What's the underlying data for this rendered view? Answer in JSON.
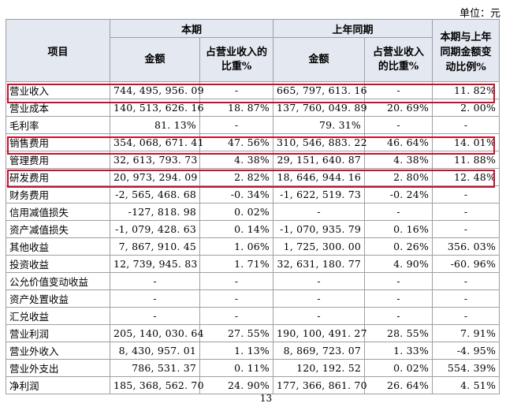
{
  "unit_label": "单位：元",
  "headers": {
    "item": "项目",
    "current_period": "本期",
    "prior_period": "上年同期",
    "change": "本期与上年同期金额变动比例%",
    "amount": "金额",
    "ratio": "占营业收入的比重%"
  },
  "rows": [
    {
      "item": "营业收入",
      "cur_amt": "744, 495, 956. 09",
      "cur_ratio": "-",
      "prior_amt": "665, 797, 613. 16",
      "prior_ratio": "-",
      "change": "11. 82%"
    },
    {
      "item": "营业成本",
      "cur_amt": "140, 513, 626. 16",
      "cur_ratio": "18. 87%",
      "prior_amt": "137, 760, 049. 89",
      "prior_ratio": "20. 69%",
      "change": "2. 00%"
    },
    {
      "item": "毛利率",
      "cur_amt": "81. 13%",
      "cur_ratio": "-",
      "prior_amt": "79. 31%",
      "prior_ratio": "-",
      "change": "-"
    },
    {
      "item": "销售费用",
      "cur_amt": "354, 068, 671. 41",
      "cur_ratio": "47. 56%",
      "prior_amt": "310, 546, 883. 22",
      "prior_ratio": "46. 64%",
      "change": "14. 01%"
    },
    {
      "item": "管理费用",
      "cur_amt": "32, 613, 793. 73",
      "cur_ratio": "4. 38%",
      "prior_amt": "29, 151, 640. 87",
      "prior_ratio": "4. 38%",
      "change": "11. 88%"
    },
    {
      "item": "研发费用",
      "cur_amt": "20, 973, 294. 09",
      "cur_ratio": "2. 82%",
      "prior_amt": "18, 646, 944. 16",
      "prior_ratio": "2. 80%",
      "change": "12. 48%"
    },
    {
      "item": "财务费用",
      "cur_amt": "-2, 565, 468. 68",
      "cur_ratio": "-0. 34%",
      "prior_amt": "-1, 622, 519. 73",
      "prior_ratio": "-0. 24%",
      "change": "-"
    },
    {
      "item": "信用减值损失",
      "cur_amt": "-127, 818. 98",
      "cur_ratio": "0. 02%",
      "prior_amt": "-",
      "prior_ratio": "-",
      "change": "-"
    },
    {
      "item": "资产减值损失",
      "cur_amt": "-1, 079, 428. 63",
      "cur_ratio": "0. 14%",
      "prior_amt": "-1, 070, 935. 79",
      "prior_ratio": "0. 16%",
      "change": "-"
    },
    {
      "item": "其他收益",
      "cur_amt": "7, 867, 910. 45",
      "cur_ratio": "1. 06%",
      "prior_amt": "1, 725, 300. 00",
      "prior_ratio": "0. 26%",
      "change": "356. 03%"
    },
    {
      "item": "投资收益",
      "cur_amt": "12, 739, 945. 83",
      "cur_ratio": "1. 71%",
      "prior_amt": "32, 631, 180. 77",
      "prior_ratio": "4. 90%",
      "change": "-60. 96%"
    },
    {
      "item": "公允价值变动收益",
      "cur_amt": "-",
      "cur_ratio": "-",
      "prior_amt": "-",
      "prior_ratio": "-",
      "change": "-"
    },
    {
      "item": "资产处置收益",
      "cur_amt": "-",
      "cur_ratio": "-",
      "prior_amt": "-",
      "prior_ratio": "-",
      "change": "-"
    },
    {
      "item": "汇兑收益",
      "cur_amt": "-",
      "cur_ratio": "-",
      "prior_amt": "-",
      "prior_ratio": "-",
      "change": "-"
    },
    {
      "item": "营业利润",
      "cur_amt": "205, 140, 030. 64",
      "cur_ratio": "27. 55%",
      "prior_amt": "190, 100, 491. 27",
      "prior_ratio": "28. 55%",
      "change": "7. 91%"
    },
    {
      "item": "营业外收入",
      "cur_amt": "8, 430, 957. 01",
      "cur_ratio": "1. 13%",
      "prior_amt": "8, 869, 723. 07",
      "prior_ratio": "1. 33%",
      "change": "-4. 95%"
    },
    {
      "item": "营业外支出",
      "cur_amt": "786, 531. 37",
      "cur_ratio": "0. 11%",
      "prior_amt": "120, 192. 52",
      "prior_ratio": "0. 02%",
      "change": "554. 39%"
    },
    {
      "item": "净利润",
      "cur_amt": "185, 368, 562. 70",
      "cur_ratio": "24. 90%",
      "prior_amt": "177, 366, 861. 70",
      "prior_ratio": "26. 64%",
      "change": "4. 51%"
    }
  ],
  "highlight_color": "#c8102e",
  "header_bg": "#e4e9f1",
  "page_number": "13"
}
